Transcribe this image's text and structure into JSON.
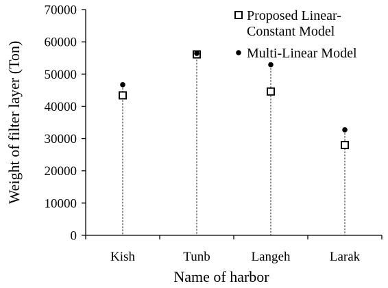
{
  "chart_data": {
    "type": "scatter",
    "categories": [
      "Kish",
      "Tunb",
      "Langeh",
      "Larak"
    ],
    "series": [
      {
        "name_lines": [
          "Proposed Linear-",
          "Constant Model"
        ],
        "marker": "open-square",
        "values": [
          43400,
          56100,
          44600,
          28000
        ]
      },
      {
        "name_lines": [
          "Multi-Linear Model"
        ],
        "marker": "filled-circle",
        "values": [
          46700,
          56400,
          52900,
          32700
        ]
      }
    ],
    "xlabel": "Name of harbor",
    "ylabel": "Weight of filter layer (Ton)",
    "ylim": [
      0,
      70000
    ],
    "yticks": [
      "0",
      "10000",
      "20000",
      "30000",
      "40000",
      "50000",
      "60000",
      "70000"
    ],
    "drop_lines": "dashed",
    "grid": false,
    "legend_position": "top-right"
  },
  "colors": {
    "axis": "#000000",
    "marker": "#000000",
    "background": "#ffffff"
  }
}
